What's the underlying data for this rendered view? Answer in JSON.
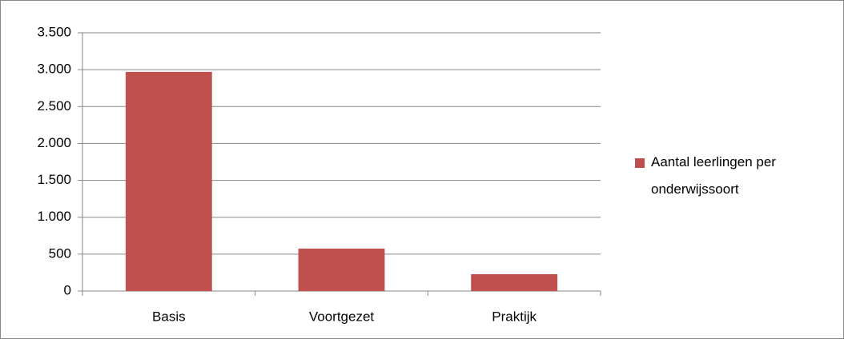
{
  "chart_data": {
    "type": "bar",
    "categories": [
      "Basis",
      "Voortgezet",
      "Praktijk"
    ],
    "series": [
      {
        "name": "Aantal leerlingen per onderwijssoort",
        "color": "#c0504d",
        "values": [
          2970,
          575,
          228
        ]
      }
    ],
    "ylim": [
      0,
      3500
    ],
    "yticks": [
      0,
      500,
      {
        "value": 1000,
        "label": "1.000"
      },
      {
        "value": 1500,
        "label": "1.500"
      },
      {
        "value": 2000,
        "label": "2.000"
      },
      {
        "value": 2500,
        "label": "2.500"
      },
      {
        "value": 3000,
        "label": "3.000"
      },
      {
        "value": 3500,
        "label": "3.500"
      }
    ],
    "grid": true,
    "legend": "right"
  }
}
